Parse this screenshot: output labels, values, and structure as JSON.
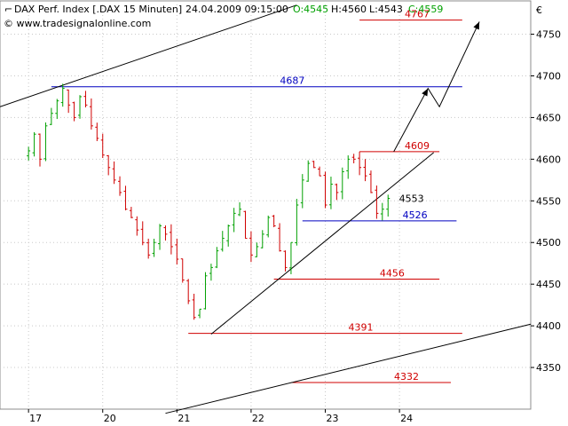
{
  "header": {
    "instrument": "DAX Perf. Index [.DAX  15 Minuten]",
    "datetime": "24.04.2009 09:15:00",
    "open": "O:4545",
    "high": "H:4560",
    "low": "L:4543",
    "close": "C:4559",
    "source": "© www.tradesignalonline.com",
    "currency": "€"
  },
  "colors": {
    "up": "#00a000",
    "down": "#d00000",
    "support": "#d00000",
    "resistance": "#0000c0",
    "trend": "#000000",
    "grid": "#c8c8c8"
  },
  "chart_data": {
    "type": "candlestick",
    "title": "DAX Perf. Index [.DAX  15 Minuten]",
    "xlabel": "",
    "ylabel": "",
    "ylim": [
      4300,
      4790
    ],
    "y_ticks": [
      4350,
      4400,
      4450,
      4500,
      4550,
      4600,
      4650,
      4700,
      4750
    ],
    "x_ticks": [
      {
        "label": "17",
        "i": 0
      },
      {
        "label": "20",
        "i": 13
      },
      {
        "label": "21",
        "i": 26
      },
      {
        "label": "22",
        "i": 39
      },
      {
        "label": "23",
        "i": 52
      },
      {
        "label": "24",
        "i": 65
      }
    ],
    "x_range": [
      -5,
      88
    ],
    "grid": true,
    "closes": [
      4610,
      4630,
      4600,
      4640,
      4655,
      4670,
      4685,
      4665,
      4650,
      4675,
      4665,
      4640,
      4625,
      4605,
      4590,
      4575,
      4560,
      4540,
      4530,
      4515,
      4500,
      4485,
      4500,
      4520,
      4510,
      4495,
      4480,
      4455,
      4430,
      4410,
      4420,
      4460,
      4470,
      4490,
      4505,
      4520,
      4535,
      4540,
      4505,
      4485,
      4495,
      4510,
      4530,
      4520,
      4490,
      4470,
      4500,
      4545,
      4575,
      4595,
      4590,
      4580,
      4545,
      4570,
      4560,
      4585,
      4600,
      4600,
      4590,
      4580,
      4560,
      4535,
      4540,
      4553
    ],
    "levels": [
      {
        "value": "4767",
        "y": 4767,
        "color": "support",
        "i0": 58,
        "i1": 76
      },
      {
        "value": "4687",
        "y": 4687,
        "color": "resistance",
        "i0": 4,
        "i1": 76
      },
      {
        "value": "4609",
        "y": 4609,
        "color": "support",
        "i0": 58,
        "i1": 72
      },
      {
        "value": "4553",
        "y": 4553,
        "color": "last",
        "i0": 64,
        "i1": 64
      },
      {
        "value": "4526",
        "y": 4526,
        "color": "resistance",
        "i0": 48,
        "i1": 75
      },
      {
        "value": "4456",
        "y": 4456,
        "color": "support",
        "i0": 43,
        "i1": 72
      },
      {
        "value": "4391",
        "y": 4391,
        "color": "support",
        "i0": 28,
        "i1": 76
      },
      {
        "value": "4332",
        "y": 4332,
        "color": "support",
        "i0": 46,
        "i1": 74
      }
    ],
    "trendlines": [
      {
        "p1": [
          -5,
          4663
        ],
        "p2": [
          47,
          4785
        ]
      },
      {
        "p1": [
          32,
          4390
        ],
        "p2": [
          71,
          4608
        ]
      },
      {
        "p1": [
          24,
          4295
        ],
        "p2": [
          88,
          4402
        ]
      }
    ],
    "projection": [
      [
        64,
        4609
      ],
      [
        70,
        4685
      ],
      [
        72,
        4663
      ],
      [
        79,
        4765
      ]
    ]
  }
}
